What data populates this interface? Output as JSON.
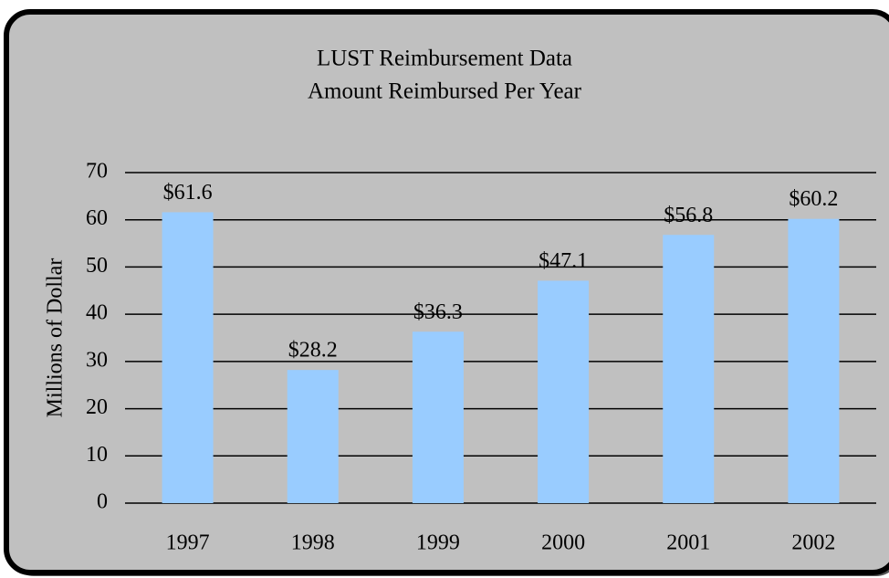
{
  "chart_data": {
    "type": "bar",
    "title": "LUST Reimbursement Data",
    "subtitle": "Amount Reimbursed Per Year",
    "y_label": "Millions of Dollar",
    "categories": [
      "1997",
      "1998",
      "1999",
      "2000",
      "2001",
      "2002"
    ],
    "values": [
      61.6,
      28.2,
      36.3,
      47.1,
      56.8,
      60.2
    ],
    "value_labels": [
      "$61.6",
      "$28.2",
      "$36.3",
      "$47.1",
      "$56.8",
      "$60.2"
    ],
    "color": "#99ccff",
    "ylim": [
      0,
      70
    ],
    "yticks": [
      0,
      10,
      20,
      30,
      40,
      50,
      60,
      70
    ],
    "grid": true
  }
}
